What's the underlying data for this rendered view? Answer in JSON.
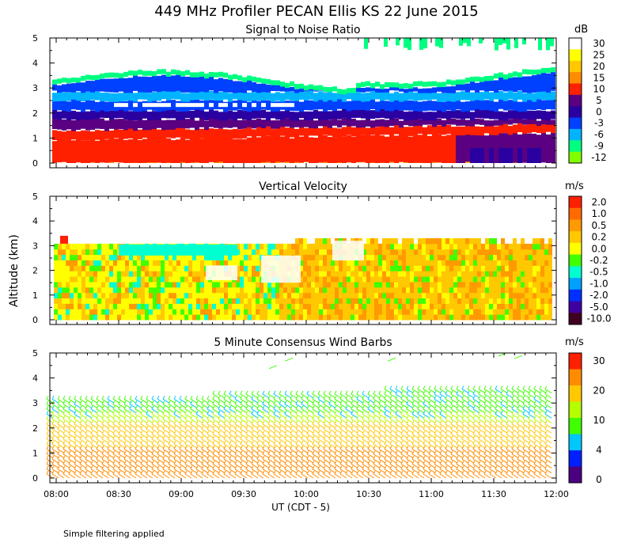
{
  "title": "449 MHz Profiler PECAN Ellis KS 22 June 2015",
  "y_axis_label": "Altitude (km)",
  "x_axis_label": "UT  (CDT - 5)",
  "footnote": "Simple filtering applied",
  "chart_data": [
    {
      "type": "heatmap",
      "title": "Signal to Noise Ratio",
      "unit": "dB",
      "x_range_ut": [
        "08:00",
        "12:00"
      ],
      "ylim": [
        0,
        5
      ],
      "y_ticks": [
        0,
        1,
        2,
        3,
        4,
        5
      ],
      "x_ticks": [
        "08:00",
        "08:30",
        "09:00",
        "09:30",
        "10:00",
        "10:30",
        "11:00",
        "11:30",
        "12:00"
      ],
      "colorbar": {
        "labels": [
          "30",
          "25",
          "20",
          "15",
          "10",
          "5",
          "0",
          "-3",
          "-6",
          "-9",
          "-12"
        ],
        "colors": [
          "#ffffff",
          "#ffff00",
          "#ffc800",
          "#ff8c00",
          "#ff2000",
          "#5a0080",
          "#2a00a0",
          "#0040ff",
          "#00b4ff",
          "#00ff80",
          "#80ff00"
        ]
      },
      "layers": [
        {
          "name": "Boundary layer high SNR (orange/red)",
          "altitude_km": [
            0.0,
            1.3
          ],
          "value_db": [
            15,
            20
          ]
        },
        {
          "name": "Strong echo band (red/purple)",
          "altitude_km": [
            1.3,
            2.0
          ],
          "value_db": [
            5,
            10
          ]
        },
        {
          "name": "Mid layer (blue/cyan)",
          "altitude_km": [
            2.0,
            3.2
          ],
          "value_db": [
            -6,
            0
          ]
        },
        {
          "name": "Upper weak echoes (green)",
          "altitude_km": [
            3.0,
            3.6
          ],
          "value_db": [
            -12,
            -9
          ]
        }
      ]
    },
    {
      "type": "heatmap",
      "title": "Vertical Velocity",
      "unit": "m/s",
      "ylim": [
        0,
        5
      ],
      "y_ticks": [
        0,
        1,
        2,
        3,
        4,
        5
      ],
      "x_ticks": [
        "08:00",
        "08:30",
        "09:00",
        "09:30",
        "10:00",
        "10:30",
        "11:00",
        "11:30",
        "12:00"
      ],
      "colorbar": {
        "labels": [
          "2.0",
          "1.0",
          "0.5",
          "0.2",
          "0.0",
          "-0.2",
          "-0.5",
          "-1.0",
          "-2.0",
          "-5.0",
          "-10.0"
        ],
        "colors": [
          "#ff2000",
          "#ff6a00",
          "#ff9a00",
          "#ffc800",
          "#ffff00",
          "#40ff00",
          "#00ffd0",
          "#00a0ff",
          "#0030ff",
          "#4000a0",
          "#400020"
        ]
      },
      "layers": [
        {
          "name": "Near-zero vertical motion (yellow/orange)",
          "altitude_km": [
            0.0,
            3.1
          ],
          "value_ms": [
            0.0,
            0.5
          ]
        },
        {
          "name": "Weak downdrafts (green/cyan)",
          "altitude_km": [
            1.5,
            3.0
          ],
          "value_ms": [
            -0.5,
            -0.2
          ]
        }
      ]
    },
    {
      "type": "wind_barbs",
      "title": "5 Minute Consensus Wind Barbs",
      "unit": "m/s",
      "ylim": [
        0,
        5
      ],
      "y_ticks": [
        0,
        1,
        2,
        3,
        4,
        5
      ],
      "x_ticks": [
        "08:00",
        "08:30",
        "09:00",
        "09:30",
        "10:00",
        "10:30",
        "11:00",
        "11:30",
        "12:00"
      ],
      "colorbar": {
        "labels": [
          "30",
          "20",
          "10",
          "4",
          "0"
        ],
        "colors": [
          "#ff2000",
          "#ff8c00",
          "#ffc800",
          "#b4ff00",
          "#40ff00",
          "#00c8ff",
          "#0020ff",
          "#4a0080"
        ]
      },
      "speed_profile": [
        {
          "altitude_km": 0.0,
          "speed_ms": 20
        },
        {
          "altitude_km": 1.0,
          "speed_ms": 18
        },
        {
          "altitude_km": 2.0,
          "speed_ms": 12
        },
        {
          "altitude_km": 3.0,
          "speed_ms": 8
        },
        {
          "altitude_km": 3.5,
          "speed_ms": 10
        }
      ]
    }
  ]
}
